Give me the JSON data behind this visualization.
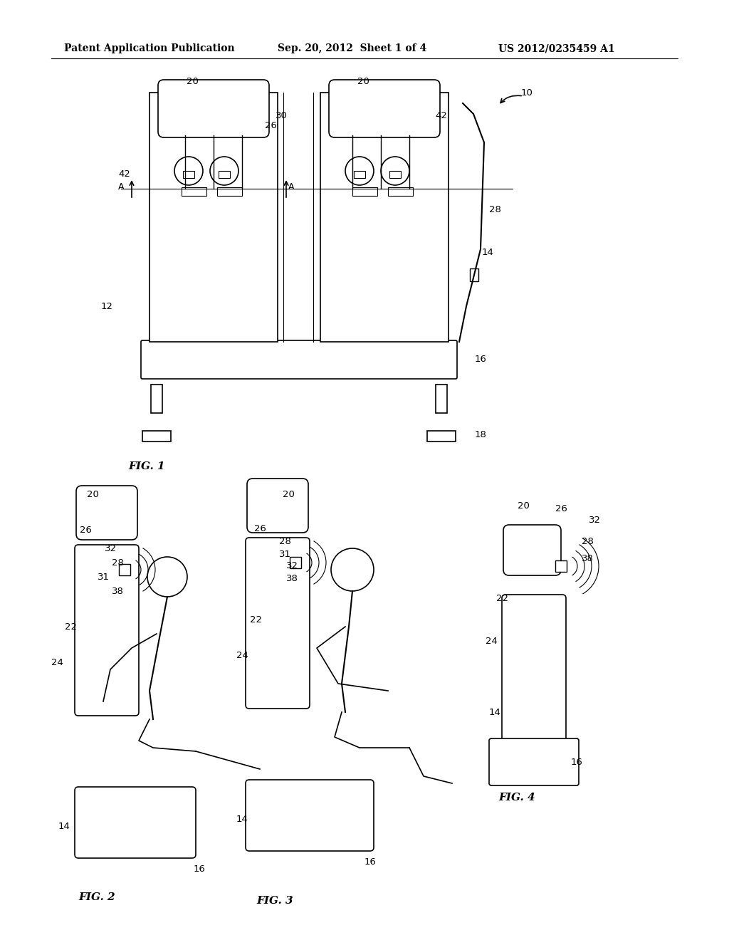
{
  "header_left": "Patent Application Publication",
  "header_mid": "Sep. 20, 2012  Sheet 1 of 4",
  "header_right": "US 2012/0235459 A1",
  "fig1_label": "FIG. 1",
  "fig2_label": "FIG. 2",
  "fig3_label": "FIG. 3",
  "fig4_label": "FIG. 4",
  "bg_color": "#ffffff",
  "line_color": "#000000",
  "header_fontsize": 10,
  "label_fontsize": 11,
  "ref_fontsize": 9.5
}
